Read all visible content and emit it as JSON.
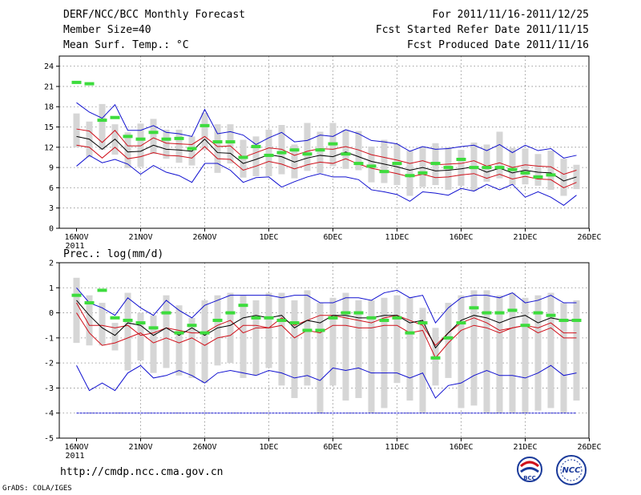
{
  "header": {
    "title": "DERF/NCC/BCC Monthly Forecast",
    "member_size": "Member Size=40",
    "variable": "Mean Surf. Temp.: °C",
    "period": "For 2011/11/16-2011/12/25",
    "started": "Fcst Started Refer Date 2011/11/15",
    "produced": "Fcst Produced Date 2011/11/16"
  },
  "precip_label": "Prec.: log(mm/d)",
  "footer": {
    "url": "http://cmdp.ncc.cma.gov.cn",
    "grads": "GrADS: COLA/IGES",
    "logo1": "BCC",
    "logo2": "NCC"
  },
  "colors": {
    "mean": "#000000",
    "std": "#d0101a",
    "extreme": "#1010d0",
    "box": "#d6d6d6",
    "observed": "#3ddc3d"
  },
  "chart_data": [
    {
      "type": "line",
      "title": "Mean Surf. Temp.: °C",
      "x": [
        1,
        2,
        3,
        4,
        5,
        6,
        7,
        8,
        9,
        10,
        11,
        12,
        13,
        14,
        15,
        16,
        17,
        18,
        19,
        20,
        21,
        22,
        23,
        24,
        25,
        26,
        27,
        28,
        29,
        30,
        31,
        32,
        33,
        34,
        35,
        36,
        37,
        38,
        39,
        40
      ],
      "xtick_labels": [
        "16NOV\n2011",
        "21NOV",
        "26NOV",
        "1DEC",
        "6DEC",
        "11DEC",
        "16DEC",
        "21DEC",
        "26DEC"
      ],
      "xtick_positions": [
        1,
        6,
        11,
        16,
        21,
        26,
        31,
        36,
        41
      ],
      "ylim": [
        0,
        25.5
      ],
      "yticks": [
        0,
        3,
        6,
        9,
        12,
        15,
        18,
        21,
        24
      ],
      "series": [
        {
          "name": "max",
          "style": "extreme",
          "values": [
            18.6,
            17.2,
            16.3,
            18.3,
            14.5,
            14.5,
            15.2,
            14.2,
            14.0,
            13.6,
            17.6,
            14.0,
            14.3,
            13.8,
            12.4,
            13.4,
            14.2,
            12.8,
            13.0,
            13.8,
            13.6,
            14.6,
            14.0,
            13.0,
            12.8,
            12.5,
            11.4,
            12.1,
            11.7,
            11.8,
            12.1,
            12.3,
            11.5,
            12.4,
            11.2,
            12.3,
            11.5,
            11.8,
            10.4,
            10.8
          ]
        },
        {
          "name": "mean_plus_std",
          "style": "std",
          "values": [
            14.7,
            14.4,
            12.7,
            14.5,
            12.2,
            12.2,
            13.4,
            12.6,
            12.5,
            12.4,
            13.6,
            12.1,
            12.2,
            10.5,
            11.2,
            11.9,
            11.7,
            10.8,
            11.4,
            11.8,
            11.7,
            12.1,
            11.6,
            10.9,
            10.5,
            10.1,
            9.6,
            10.0,
            9.4,
            9.5,
            9.6,
            10.0,
            9.2,
            9.7,
            9.0,
            9.4,
            9.2,
            9.1,
            8.0,
            8.6
          ]
        },
        {
          "name": "mean",
          "style": "mean",
          "values": [
            13.6,
            13.2,
            11.7,
            13.2,
            11.3,
            11.4,
            12.3,
            11.7,
            11.6,
            11.4,
            13.2,
            11.2,
            11.1,
            9.6,
            10.2,
            10.9,
            10.6,
            9.8,
            10.4,
            10.8,
            10.6,
            11.3,
            10.6,
            9.9,
            9.5,
            9.1,
            8.6,
            9.0,
            8.5,
            8.6,
            8.8,
            9.1,
            8.3,
            8.9,
            8.2,
            8.6,
            8.3,
            8.2,
            7.0,
            7.6
          ]
        },
        {
          "name": "mean_minus_std",
          "style": "std",
          "values": [
            12.3,
            12.0,
            10.4,
            12.0,
            10.3,
            10.6,
            11.2,
            10.8,
            10.7,
            10.4,
            12.1,
            10.3,
            10.2,
            8.6,
            9.2,
            9.9,
            9.5,
            8.8,
            9.4,
            9.8,
            9.6,
            10.3,
            9.5,
            8.9,
            8.5,
            8.1,
            7.6,
            8.0,
            7.5,
            7.6,
            7.9,
            8.1,
            7.4,
            8.0,
            7.3,
            7.7,
            7.3,
            7.2,
            6.0,
            6.8
          ]
        },
        {
          "name": "min",
          "style": "extreme",
          "values": [
            9.2,
            10.8,
            9.7,
            10.2,
            9.5,
            8.0,
            9.3,
            8.3,
            7.8,
            6.8,
            9.6,
            9.6,
            8.6,
            6.8,
            7.5,
            7.6,
            6.1,
            6.9,
            7.6,
            8.1,
            7.6,
            7.6,
            7.2,
            5.7,
            5.4,
            5.0,
            4.0,
            5.4,
            5.2,
            4.9,
            5.9,
            5.5,
            6.5,
            5.7,
            6.5,
            4.6,
            5.4,
            4.6,
            3.4,
            4.9
          ]
        },
        {
          "name": "box_top",
          "style": "box",
          "values": [
            17.0,
            15.8,
            18.4,
            15.4,
            14.2,
            15.5,
            16.2,
            14.6,
            14.6,
            13.6,
            17.1,
            15.4,
            15.4,
            13.1,
            13.6,
            14.6,
            15.3,
            12.4,
            15.6,
            14.3,
            15.6,
            14.6,
            14.4,
            12.1,
            13.1,
            12.5,
            11.5,
            12.1,
            12.6,
            12.0,
            11.6,
            12.7,
            12.4,
            14.3,
            11.9,
            11.8,
            11.0,
            11.5,
            10.3,
            9.4
          ]
        },
        {
          "name": "box_bottom",
          "style": "box",
          "values": [
            12.0,
            10.5,
            11.6,
            10.9,
            8.9,
            9.1,
            11.0,
            10.3,
            9.7,
            9.3,
            11.6,
            8.2,
            9.6,
            7.5,
            7.7,
            7.7,
            8.0,
            7.4,
            8.5,
            8.2,
            9.2,
            8.8,
            8.6,
            6.8,
            6.7,
            6.4,
            4.8,
            6.1,
            6.4,
            5.7,
            6.3,
            5.5,
            6.9,
            7.4,
            6.4,
            6.5,
            6.3,
            5.7,
            4.8,
            5.8
          ]
        },
        {
          "name": "observed",
          "style": "observed",
          "values": [
            21.6,
            21.4,
            16.0,
            16.4,
            13.6,
            13.2,
            14.2,
            13.2,
            13.3,
            11.8,
            15.2,
            12.8,
            12.8,
            10.5,
            12.1,
            10.8,
            11.2,
            11.6,
            11.0,
            11.6,
            12.5,
            11.0,
            9.6,
            9.2,
            8.4,
            9.6,
            7.8,
            8.2,
            9.6,
            9.0,
            10.2,
            9.0,
            9.0,
            9.0,
            8.7,
            8.2,
            7.6,
            7.9,
            null,
            null
          ]
        }
      ]
    },
    {
      "type": "line",
      "title": "Prec.: log(mm/d)",
      "x": [
        1,
        2,
        3,
        4,
        5,
        6,
        7,
        8,
        9,
        10,
        11,
        12,
        13,
        14,
        15,
        16,
        17,
        18,
        19,
        20,
        21,
        22,
        23,
        24,
        25,
        26,
        27,
        28,
        29,
        30,
        31,
        32,
        33,
        34,
        35,
        36,
        37,
        38,
        39,
        40
      ],
      "xtick_labels": [
        "16NOV\n2011",
        "21NOV",
        "26NOV",
        "1DEC",
        "6DEC",
        "11DEC",
        "16DEC",
        "21DEC",
        "26DEC"
      ],
      "xtick_positions": [
        1,
        6,
        11,
        16,
        21,
        26,
        31,
        36,
        41
      ],
      "ylim": [
        -5,
        2
      ],
      "yticks": [
        -5,
        -4,
        -3,
        -2,
        -1,
        0,
        1,
        2
      ],
      "series": [
        {
          "name": "max",
          "style": "extreme",
          "values": [
            1.0,
            0.4,
            0.2,
            -0.1,
            0.6,
            0.2,
            -0.1,
            0.5,
            0.1,
            -0.2,
            0.3,
            0.5,
            0.7,
            0.7,
            0.7,
            0.7,
            0.6,
            0.7,
            0.7,
            0.4,
            0.4,
            0.6,
            0.6,
            0.5,
            0.8,
            0.9,
            0.6,
            0.7,
            -0.4,
            0.2,
            0.6,
            0.7,
            0.7,
            0.6,
            0.8,
            0.4,
            0.5,
            0.7,
            0.4,
            0.4
          ]
        },
        {
          "name": "mean_plus_std",
          "style": "std",
          "values": [
            0.4,
            -0.5,
            -0.5,
            -0.6,
            -0.5,
            -0.9,
            -0.8,
            -0.6,
            -0.7,
            -0.8,
            -0.8,
            -0.5,
            -0.3,
            -0.8,
            -0.6,
            -0.6,
            -0.2,
            -0.5,
            -0.3,
            -0.1,
            -0.1,
            -0.2,
            -0.3,
            -0.4,
            -0.2,
            -0.1,
            -0.3,
            -0.5,
            -1.3,
            -0.8,
            -0.4,
            -0.2,
            -0.4,
            -0.7,
            -0.6,
            -0.5,
            -0.6,
            -0.4,
            -0.8,
            -0.8
          ]
        },
        {
          "name": "mean",
          "style": "mean",
          "values": [
            0.5,
            -0.1,
            -0.6,
            -0.9,
            -0.4,
            -0.5,
            -0.9,
            -0.6,
            -0.9,
            -0.6,
            -0.9,
            -0.6,
            -0.5,
            -0.2,
            -0.1,
            -0.2,
            -0.1,
            -0.6,
            -0.3,
            -0.4,
            -0.1,
            -0.1,
            -0.2,
            -0.2,
            -0.1,
            -0.1,
            -0.4,
            -0.3,
            -1.4,
            -0.8,
            -0.3,
            -0.1,
            -0.2,
            -0.4,
            -0.2,
            -0.1,
            -0.4,
            -0.2,
            -0.3,
            -0.3
          ]
        },
        {
          "name": "mean_minus_std",
          "style": "std",
          "values": [
            0.0,
            -0.8,
            -1.3,
            -1.2,
            -1.0,
            -0.8,
            -1.2,
            -1.0,
            -1.2,
            -1.0,
            -1.3,
            -1.0,
            -0.9,
            -0.5,
            -0.5,
            -0.6,
            -0.5,
            -1.0,
            -0.7,
            -0.8,
            -0.5,
            -0.5,
            -0.6,
            -0.6,
            -0.5,
            -0.5,
            -0.8,
            -0.7,
            -1.8,
            -1.2,
            -0.7,
            -0.5,
            -0.6,
            -0.8,
            -0.6,
            -0.5,
            -0.8,
            -0.6,
            -1.0,
            -1.0
          ]
        },
        {
          "name": "min",
          "style": "extreme",
          "values": [
            -2.1,
            -3.1,
            -2.8,
            -3.1,
            -2.4,
            -2.1,
            -2.6,
            -2.5,
            -2.3,
            -2.5,
            -2.8,
            -2.4,
            -2.3,
            -2.4,
            -2.5,
            -2.3,
            -2.4,
            -2.6,
            -2.5,
            -2.7,
            -2.2,
            -2.3,
            -2.2,
            -2.4,
            -2.4,
            -2.4,
            -2.6,
            -2.4,
            -3.4,
            -2.9,
            -2.8,
            -2.5,
            -2.3,
            -2.5,
            -2.5,
            -2.6,
            -2.4,
            -2.1,
            -2.5,
            -2.4
          ]
        },
        {
          "name": "floor",
          "style": "extreme",
          "values": [
            -4,
            -4,
            -4,
            -4,
            -4,
            -4,
            -4,
            -4,
            -4,
            -4,
            -4,
            -4,
            -4,
            -4,
            -4,
            -4,
            -4,
            -4,
            -4,
            -4,
            -4,
            -4,
            -4,
            -4,
            -4,
            -4,
            -4,
            -4,
            -4,
            -4,
            -4,
            -4,
            -4,
            -4,
            -4,
            -4,
            -4,
            -4,
            -4,
            -4
          ]
        },
        {
          "name": "box_top",
          "style": "box",
          "values": [
            1.4,
            0.7,
            0.4,
            -0.4,
            0.8,
            0.0,
            -0.1,
            0.7,
            0.3,
            -0.2,
            0.5,
            0.7,
            0.8,
            0.7,
            0.5,
            0.8,
            0.8,
            0.5,
            0.9,
            0.4,
            0.6,
            0.8,
            0.5,
            0.5,
            0.6,
            0.7,
            0.6,
            0.2,
            -0.6,
            0.4,
            0.7,
            0.9,
            0.9,
            0.7,
            0.8,
            0.6,
            0.7,
            0.8,
            0.4,
            0.5
          ]
        },
        {
          "name": "box_bottom",
          "style": "box",
          "values": [
            -1.2,
            -1.3,
            -1.3,
            -1.5,
            -2.3,
            -1.9,
            -2.4,
            -2.2,
            -2.5,
            -2.6,
            -2.8,
            -2.1,
            -2.0,
            -2.6,
            -2.5,
            -2.2,
            -2.9,
            -3.4,
            -2.9,
            -4.0,
            -2.9,
            -3.5,
            -3.4,
            -4.0,
            -3.8,
            -2.8,
            -3.5,
            -4.0,
            -2.9,
            -2.6,
            -3.8,
            -3.7,
            -4.0,
            -4.0,
            -4.0,
            -4.0,
            -3.9,
            -3.8,
            -4.0,
            -3.5
          ]
        },
        {
          "name": "observed",
          "style": "observed",
          "values": [
            0.7,
            0.4,
            0.9,
            -0.2,
            -0.3,
            -0.4,
            -0.6,
            0.0,
            -0.8,
            -0.5,
            -0.8,
            -0.3,
            0.0,
            0.3,
            -0.2,
            -0.2,
            -0.3,
            -0.4,
            -0.7,
            -0.7,
            -0.2,
            0.0,
            0.0,
            -0.2,
            -0.3,
            -0.2,
            -0.8,
            -0.4,
            -1.8,
            -1.0,
            -0.4,
            0.2,
            0.0,
            0.0,
            0.1,
            -0.5,
            0.0,
            -0.1,
            -0.3,
            -0.3
          ]
        }
      ]
    }
  ]
}
